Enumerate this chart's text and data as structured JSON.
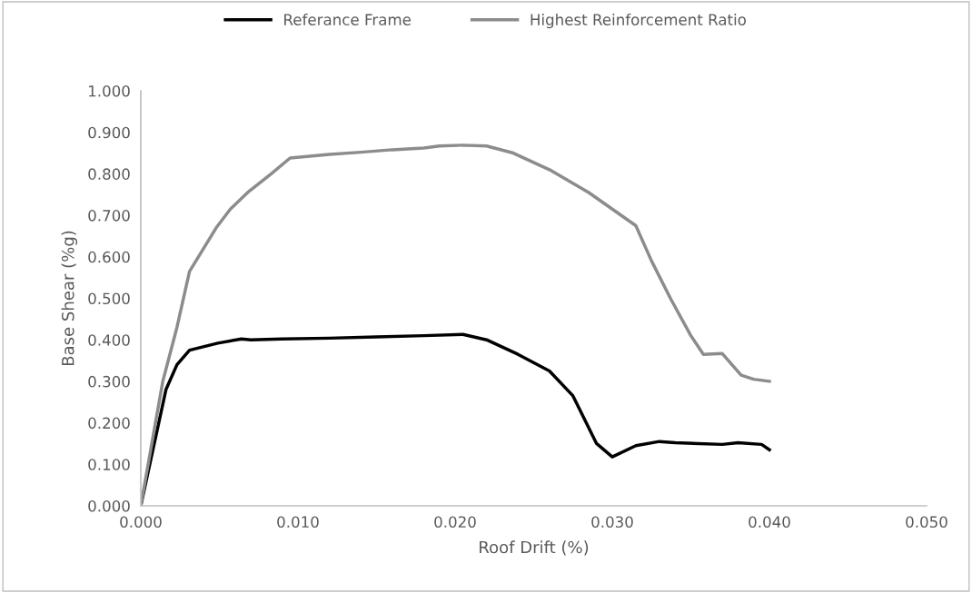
{
  "chart_data": {
    "type": "line",
    "xlabel": "Roof Drift (%)",
    "ylabel": "Base Shear (%g)",
    "xlim": [
      0,
      0.05
    ],
    "xticks": [
      {
        "value": 0,
        "label": "0.000"
      },
      {
        "value": 0.01,
        "label": "0.010"
      },
      {
        "value": 0.02,
        "label": "0.020"
      },
      {
        "value": 0.03,
        "label": "0.030"
      },
      {
        "value": 0.04,
        "label": "0.040"
      },
      {
        "value": 0.05,
        "label": "0.050"
      }
    ],
    "ylim": [
      0,
      1
    ],
    "yticks": [
      {
        "value": 0,
        "label": "0.000"
      },
      {
        "value": 0.1,
        "label": "0.100"
      },
      {
        "value": 0.2,
        "label": "0.200"
      },
      {
        "value": 0.3,
        "label": "0.300"
      },
      {
        "value": 0.4,
        "label": "0.400"
      },
      {
        "value": 0.5,
        "label": "0.500"
      },
      {
        "value": 0.6,
        "label": "0.600"
      },
      {
        "value": 0.7,
        "label": "0.700"
      },
      {
        "value": 0.8,
        "label": "0.800"
      },
      {
        "value": 0.9,
        "label": "0.900"
      },
      {
        "value": 1,
        "label": "1.000"
      }
    ],
    "grid": false,
    "legend": "top",
    "marker": "none",
    "line_style": "solid",
    "series": [
      {
        "name": "Referance Frame",
        "color": "#000000",
        "x": [
          0,
          0.0016,
          0.0023,
          0.0031,
          0.0049,
          0.0064,
          0.007,
          0.009,
          0.012,
          0.015,
          0.018,
          0.0205,
          0.022,
          0.024,
          0.026,
          0.0275,
          0.029,
          0.03,
          0.0315,
          0.033,
          0.034,
          0.037,
          0.038,
          0.0395,
          0.04
        ],
        "values": [
          0,
          0.28,
          0.34,
          0.375,
          0.392,
          0.402,
          0.4,
          0.402,
          0.404,
          0.407,
          0.41,
          0.413,
          0.4,
          0.365,
          0.325,
          0.265,
          0.15,
          0.118,
          0.145,
          0.155,
          0.152,
          0.148,
          0.152,
          0.148,
          0.135
        ]
      },
      {
        "name": "Highest Reinforcement Ratio",
        "color": "#8c8c8c",
        "x": [
          0,
          0.0014,
          0.0023,
          0.0031,
          0.0048,
          0.0057,
          0.0068,
          0.0083,
          0.0095,
          0.012,
          0.014,
          0.016,
          0.018,
          0.019,
          0.0205,
          0.022,
          0.0237,
          0.026,
          0.0285,
          0.03,
          0.0315,
          0.0325,
          0.0337,
          0.035,
          0.0358,
          0.037,
          0.0382,
          0.039,
          0.04
        ],
        "values": [
          0,
          0.3,
          0.43,
          0.565,
          0.67,
          0.715,
          0.755,
          0.8,
          0.838,
          0.847,
          0.852,
          0.858,
          0.862,
          0.867,
          0.869,
          0.867,
          0.85,
          0.81,
          0.755,
          0.715,
          0.675,
          0.59,
          0.5,
          0.41,
          0.365,
          0.367,
          0.315,
          0.305,
          0.3
        ]
      }
    ]
  }
}
